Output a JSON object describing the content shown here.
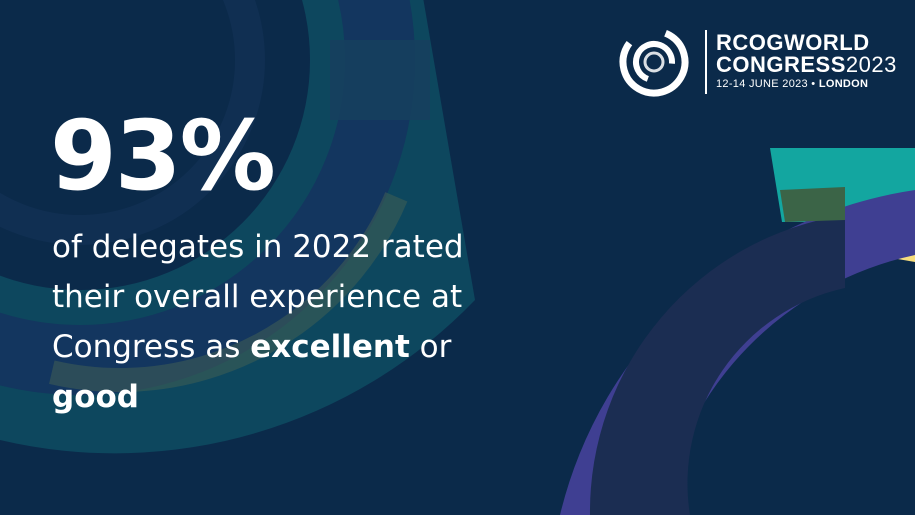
{
  "stat": {
    "value": "93%",
    "text_prefix": "of delegates in 2022 rated their overall experience at Congress as ",
    "emphasis_1": "excellent",
    "text_middle": " or ",
    "emphasis_2": "good"
  },
  "logo": {
    "line1": "RCOGWORLD",
    "line2_bold": "CONGRESS",
    "line2_light": "2023",
    "line3_dates": "12-14 JUNE 2023 • ",
    "line3_city": "LONDON"
  },
  "colors": {
    "background": "#0b2a4a",
    "arc_navy": "#13365f",
    "arc_teal": "#0e4f63",
    "arc_olive": "#3b6447",
    "arc_indigo": "#3f3f92",
    "arc_aqua": "#13a6a0",
    "arc_yellow": "#f7dd7c",
    "text": "#ffffff"
  }
}
